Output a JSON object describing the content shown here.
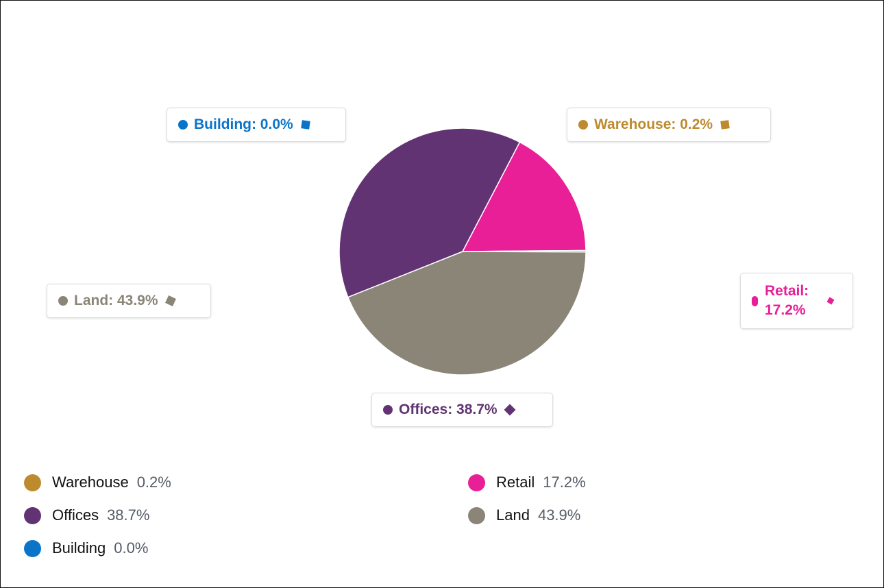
{
  "chart_data": {
    "type": "pie",
    "title": "",
    "slices": [
      {
        "label": "Retail",
        "value": 17.2,
        "display": "17.2%",
        "color": "#E81F97"
      },
      {
        "label": "Warehouse",
        "value": 0.2,
        "display": "0.2%",
        "color": "#BD8A2E"
      },
      {
        "label": "Land",
        "value": 43.9,
        "display": "43.9%",
        "color": "#8A8577"
      },
      {
        "label": "Offices",
        "value": 38.7,
        "display": "38.7%",
        "color": "#623373"
      },
      {
        "label": "Building",
        "value": 0.0,
        "display": "0.0%",
        "color": "#0A74C9"
      }
    ],
    "start_angle_deg": 27.6,
    "legend_placement": "bottom"
  },
  "callouts": {
    "building": "Building: 0.0%",
    "warehouse": "Warehouse: 0.2%",
    "land": "Land: 43.9%",
    "retail_name": "Retail:",
    "retail_value": "17.2%",
    "offices": "Offices: 38.7%"
  },
  "legend": [
    {
      "name": "Warehouse",
      "value": "0.2%",
      "color": "#BD8A2E"
    },
    {
      "name": "Retail",
      "value": "17.2%",
      "color": "#E81F97"
    },
    {
      "name": "Offices",
      "value": "38.7%",
      "color": "#623373"
    },
    {
      "name": "Land",
      "value": "43.9%",
      "color": "#8A8577"
    },
    {
      "name": "Building",
      "value": "0.0%",
      "color": "#0A74C9"
    }
  ]
}
